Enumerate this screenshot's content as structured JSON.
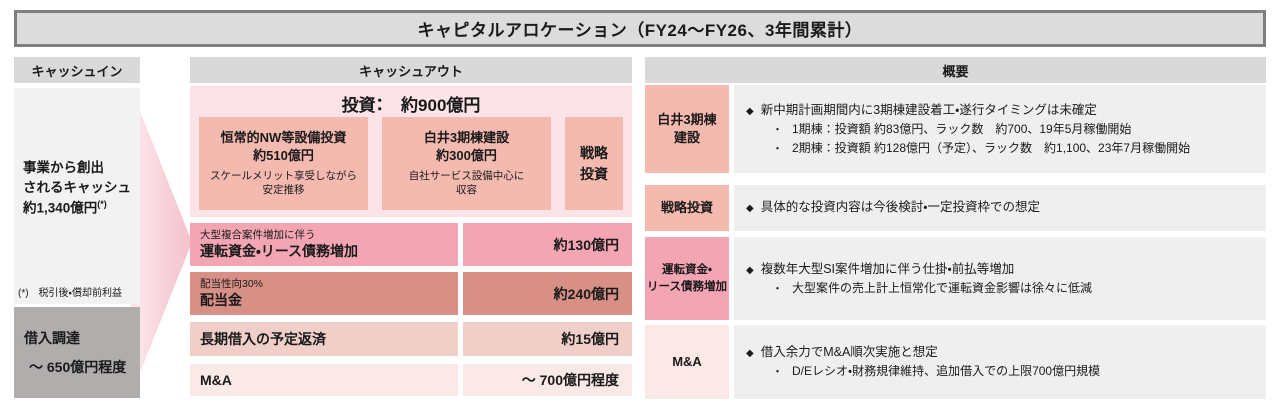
{
  "title": "キャピタルアロケーション（FY24～FY26、3年間累計）",
  "icons": {
    "bullet_diamond": "◆",
    "bullet_dot": "・"
  },
  "colors": {
    "title_bar_bg": "#dcdcdc",
    "title_bar_border": "#7f7f7f",
    "section_header_bg": "#d9d9d9",
    "cashin_operating_bg": "#f2f2f2",
    "cashin_borrowing_bg": "#b1adad",
    "arrow_pink": "#f8d2da",
    "invest_outer_bg": "#fbe3e7",
    "invest_sub_bg": "#f4b9af",
    "row_working_capital_bg": "#f3a5b4",
    "row_dividend_bg": "#d8908f",
    "row_loan_repay_bg": "#f0cfc9",
    "row_ma_bg": "#fae9e6",
    "overview_content_bg": "#f0efef"
  },
  "cash_in": {
    "header": "キャッシュイン",
    "operating": {
      "line1": "事業から創出",
      "line2": "されるキャッシュ",
      "amount": "約1,340億円",
      "amount_sup": "(*)",
      "footnote": "(*)　税引後・償却前利益"
    },
    "borrowing": {
      "title": "借入調達",
      "amount": "～ 650億円程度"
    }
  },
  "cash_out": {
    "header": "キャッシュアウト",
    "investment": {
      "title": "投資：　約900億円",
      "box1": {
        "name": "恒常的NW等設備投資",
        "amount": "約510億円",
        "desc1": "スケールメリット享受しながら",
        "desc2": "安定推移"
      },
      "box2": {
        "name": "白井3期棟建設",
        "amount": "約300億円",
        "desc1": "自社サービス設備中心に",
        "desc2": "収容"
      },
      "box3": {
        "line1": "戦略",
        "line2": "投資"
      }
    },
    "rows": [
      {
        "note": "大型複合案件増加に伴う",
        "label": "運転資金・リース債務増加",
        "value": "約130億円"
      },
      {
        "note": "配当性向30%",
        "label": "配当金",
        "value": "約240億円"
      },
      {
        "label": "長期借入の予定返済",
        "value": "約15億円"
      },
      {
        "label": "M&A",
        "value": "～ 700億円程度"
      }
    ]
  },
  "overview": {
    "header": "概要",
    "rows": [
      {
        "label1": "白井3期棟",
        "label2": "建設",
        "bullet": "新中期計画期間内に3期棟建設着工・遂行タイミングは未確定",
        "sub1": "1期棟：投資額 約83億円、ラック数　約700、19年5月稼働開始",
        "sub2": "2期棟：投資額 約128億円（予定）、ラック数　約1,100、23年7月稼働開始"
      },
      {
        "label1": "戦略投資",
        "bullet": "具体的な投資内容は今後検討・一定投資枠での想定"
      },
      {
        "label1": "運転資金・",
        "label2": "リース債務増加",
        "bullet": "複数年大型SI案件増加に伴う仕掛・前払等増加",
        "sub1": "大型案件の売上計上恒常化で運転資金影響は徐々に低減"
      },
      {
        "label1": "M&A",
        "bullet": "借入余力でM&A順次実施と想定",
        "sub1": "D/Eレシオ・財務規律維持、追加借入での上限700億円規模"
      }
    ]
  }
}
